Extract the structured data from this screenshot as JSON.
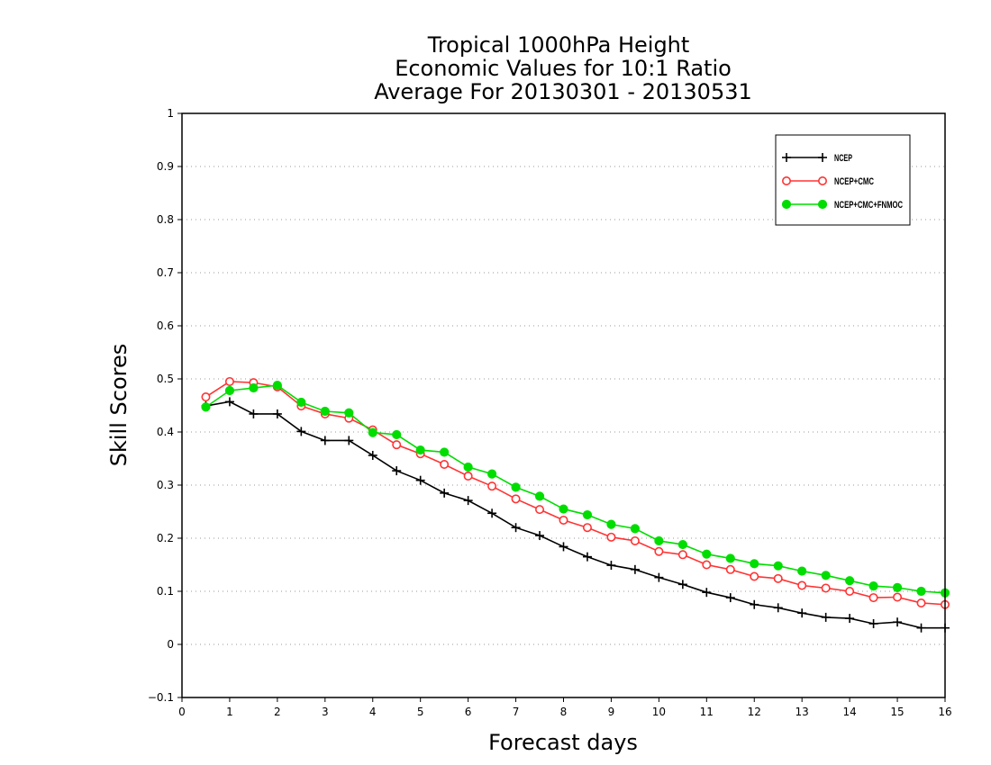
{
  "chart_data": {
    "type": "line",
    "title": [
      "Tropical 1000hPa Height",
      "Economic Values for 10:1 Ratio",
      "Average For 20130301 - 20130531"
    ],
    "xlabel": "Forecast days",
    "ylabel": "Skill Scores",
    "xlim": [
      0,
      16
    ],
    "ylim": [
      -0.1,
      1
    ],
    "xticks": [
      "0",
      "1",
      "2",
      "3",
      "4",
      "5",
      "6",
      "7",
      "8",
      "9",
      "10",
      "11",
      "12",
      "13",
      "14",
      "15",
      "16"
    ],
    "yticks": [
      "−0.1",
      "0",
      "0.1",
      "0.2",
      "0.3",
      "0.4",
      "0.5",
      "0.6",
      "0.7",
      "0.8",
      "0.9",
      "1"
    ],
    "grid": true,
    "legend_position": "top-right",
    "x": [
      0.5,
      1,
      1.5,
      2,
      2.5,
      3,
      3.5,
      4,
      4.5,
      5,
      5.5,
      6,
      6.5,
      7,
      7.5,
      8,
      8.5,
      9,
      9.5,
      10,
      10.5,
      11,
      11.5,
      12,
      12.5,
      13,
      13.5,
      14,
      14.5,
      15,
      15.5,
      16
    ],
    "series": [
      {
        "name": "NCEP",
        "color": "#000000",
        "marker": "plus",
        "values": [
          0.449,
          0.457,
          0.434,
          0.434,
          0.401,
          0.384,
          0.384,
          0.356,
          0.327,
          0.309,
          0.285,
          0.271,
          0.247,
          0.22,
          0.205,
          0.184,
          0.165,
          0.149,
          0.141,
          0.126,
          0.113,
          0.098,
          0.088,
          0.075,
          0.069,
          0.059,
          0.051,
          0.049,
          0.039,
          0.042,
          0.031,
          0.031
        ]
      },
      {
        "name": "NCEP+CMC",
        "color": "#ff3333",
        "marker": "open-circle",
        "values": [
          0.466,
          0.495,
          0.493,
          0.485,
          0.449,
          0.434,
          0.426,
          0.404,
          0.376,
          0.359,
          0.339,
          0.317,
          0.298,
          0.274,
          0.254,
          0.234,
          0.22,
          0.202,
          0.195,
          0.175,
          0.169,
          0.15,
          0.141,
          0.128,
          0.124,
          0.111,
          0.106,
          0.1,
          0.088,
          0.089,
          0.078,
          0.075
        ]
      },
      {
        "name": "NCEP+CMC+FNMOC",
        "color": "#00dd00",
        "marker": "filled-circle",
        "values": [
          0.447,
          0.478,
          0.483,
          0.488,
          0.456,
          0.439,
          0.436,
          0.399,
          0.395,
          0.366,
          0.362,
          0.334,
          0.321,
          0.296,
          0.279,
          0.255,
          0.244,
          0.226,
          0.218,
          0.195,
          0.188,
          0.17,
          0.162,
          0.152,
          0.148,
          0.138,
          0.13,
          0.12,
          0.11,
          0.107,
          0.1,
          0.097
        ]
      }
    ]
  }
}
